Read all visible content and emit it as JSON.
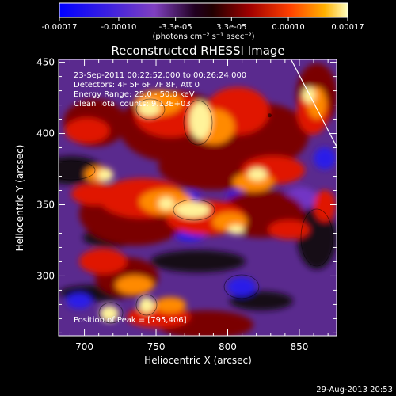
{
  "chart_data": {
    "type": "heatmap",
    "title": "Reconstructed RHESSI Image",
    "xlabel": "Heliocentric X (arcsec)",
    "ylabel": "Heliocentric Y (arcsec)",
    "xlim": [
      682,
      876
    ],
    "ylim": [
      258,
      452
    ],
    "x_ticks": [
      700,
      750,
      800,
      850
    ],
    "y_ticks": [
      300,
      350,
      400,
      450
    ],
    "colorbar": {
      "ticks": [
        "-0.00017",
        "-0.00010",
        "-3.3e-05",
        "3.3e-05",
        "0.00010",
        "0.00017"
      ],
      "values": [
        -0.00017,
        -0.0001,
        -3.3e-05,
        3.3e-05,
        0.0001,
        0.00017
      ],
      "range": [
        -0.00017,
        0.00017
      ],
      "unit_label": "(photons cm⁻² s⁻¹ asec⁻²)"
    },
    "info_lines": [
      "23-Sep-2011 00:22:52.000 to 00:26:24.000",
      "Detectors: 4F 5F 6F 7F 8F, Att 0",
      "Energy Range: 25.0 - 50.0 keV",
      "Clean     Total counts: 9.13E+03"
    ],
    "peak_text": "Position of Peak = [795,406]",
    "peak": [
      795,
      406
    ],
    "colors": [
      "#1a1af0",
      "#7a35c8",
      "#1a0a1a",
      "#7a0000",
      "#e01000",
      "#ff8c00",
      "#fff08a"
    ]
  },
  "footer_date": "29-Aug-2013 20:53"
}
